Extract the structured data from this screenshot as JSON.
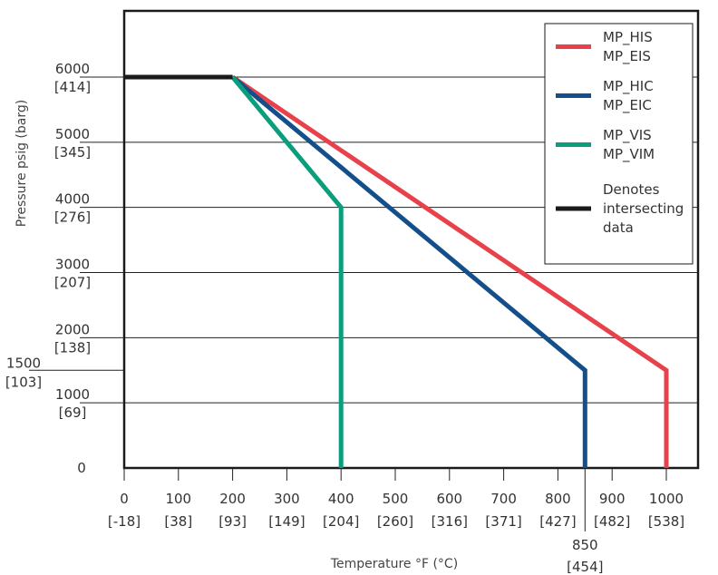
{
  "chart_data": {
    "type": "line",
    "xlabel": "Temperature °F (°C)",
    "ylabel": "Pressure psig (barg)",
    "xlim": [
      0,
      1050
    ],
    "ylim": [
      0,
      7200
    ],
    "grid": "horizontal",
    "legend_position": "top-right",
    "x_ticks": [
      {
        "value": 0,
        "label": "0",
        "sub": "[-18]"
      },
      {
        "value": 100,
        "label": "100",
        "sub": "[38]"
      },
      {
        "value": 200,
        "label": "200",
        "sub": "[93]"
      },
      {
        "value": 300,
        "label": "300",
        "sub": "[149]"
      },
      {
        "value": 400,
        "label": "400",
        "sub": "[204]"
      },
      {
        "value": 500,
        "label": "500",
        "sub": "[260]"
      },
      {
        "value": 600,
        "label": "600",
        "sub": "[316]"
      },
      {
        "value": 700,
        "label": "700",
        "sub": "[371]"
      },
      {
        "value": 800,
        "label": "800",
        "sub": "[427]"
      },
      {
        "value": 900,
        "label": "900",
        "sub": "[482]"
      },
      {
        "value": 1000,
        "label": "1000",
        "sub": "[538]"
      }
    ],
    "x_extra_tick": {
      "value": 850,
      "label": "850",
      "sub": "[454]"
    },
    "y_ticks": [
      {
        "value": 0,
        "label": "0",
        "sub": ""
      },
      {
        "value": 1000,
        "label": "1000",
        "sub": "[69]"
      },
      {
        "value": 2000,
        "label": "2000",
        "sub": "[138]"
      },
      {
        "value": 3000,
        "label": "3000",
        "sub": "[207]"
      },
      {
        "value": 4000,
        "label": "4000",
        "sub": "[276]"
      },
      {
        "value": 5000,
        "label": "5000",
        "sub": "[345]"
      },
      {
        "value": 6000,
        "label": "6000",
        "sub": "[414]"
      }
    ],
    "y_extra_tick": {
      "value": 1500,
      "label": "1500",
      "sub": "[103]"
    },
    "series": [
      {
        "legend": [
          "MP_HIS",
          "MP_EIS"
        ],
        "color": "#e8414b",
        "points": [
          [
            200,
            6000
          ],
          [
            1000,
            1500
          ],
          [
            1000,
            0
          ]
        ]
      },
      {
        "legend": [
          "MP_HIC",
          "MP_EIC"
        ],
        "color": "#134f8a",
        "points": [
          [
            200,
            6000
          ],
          [
            850,
            1500
          ],
          [
            850,
            0
          ]
        ]
      },
      {
        "legend": [
          "MP_VIS",
          "MP_VIM"
        ],
        "color": "#0a9e7c",
        "points": [
          [
            200,
            6000
          ],
          [
            400,
            4000
          ],
          [
            400,
            0
          ]
        ]
      },
      {
        "legend": [
          "Denotes",
          "intersecting",
          "data"
        ],
        "color": "#1a1a1a",
        "points": [
          [
            0,
            6000
          ],
          [
            200,
            6000
          ]
        ]
      }
    ]
  }
}
